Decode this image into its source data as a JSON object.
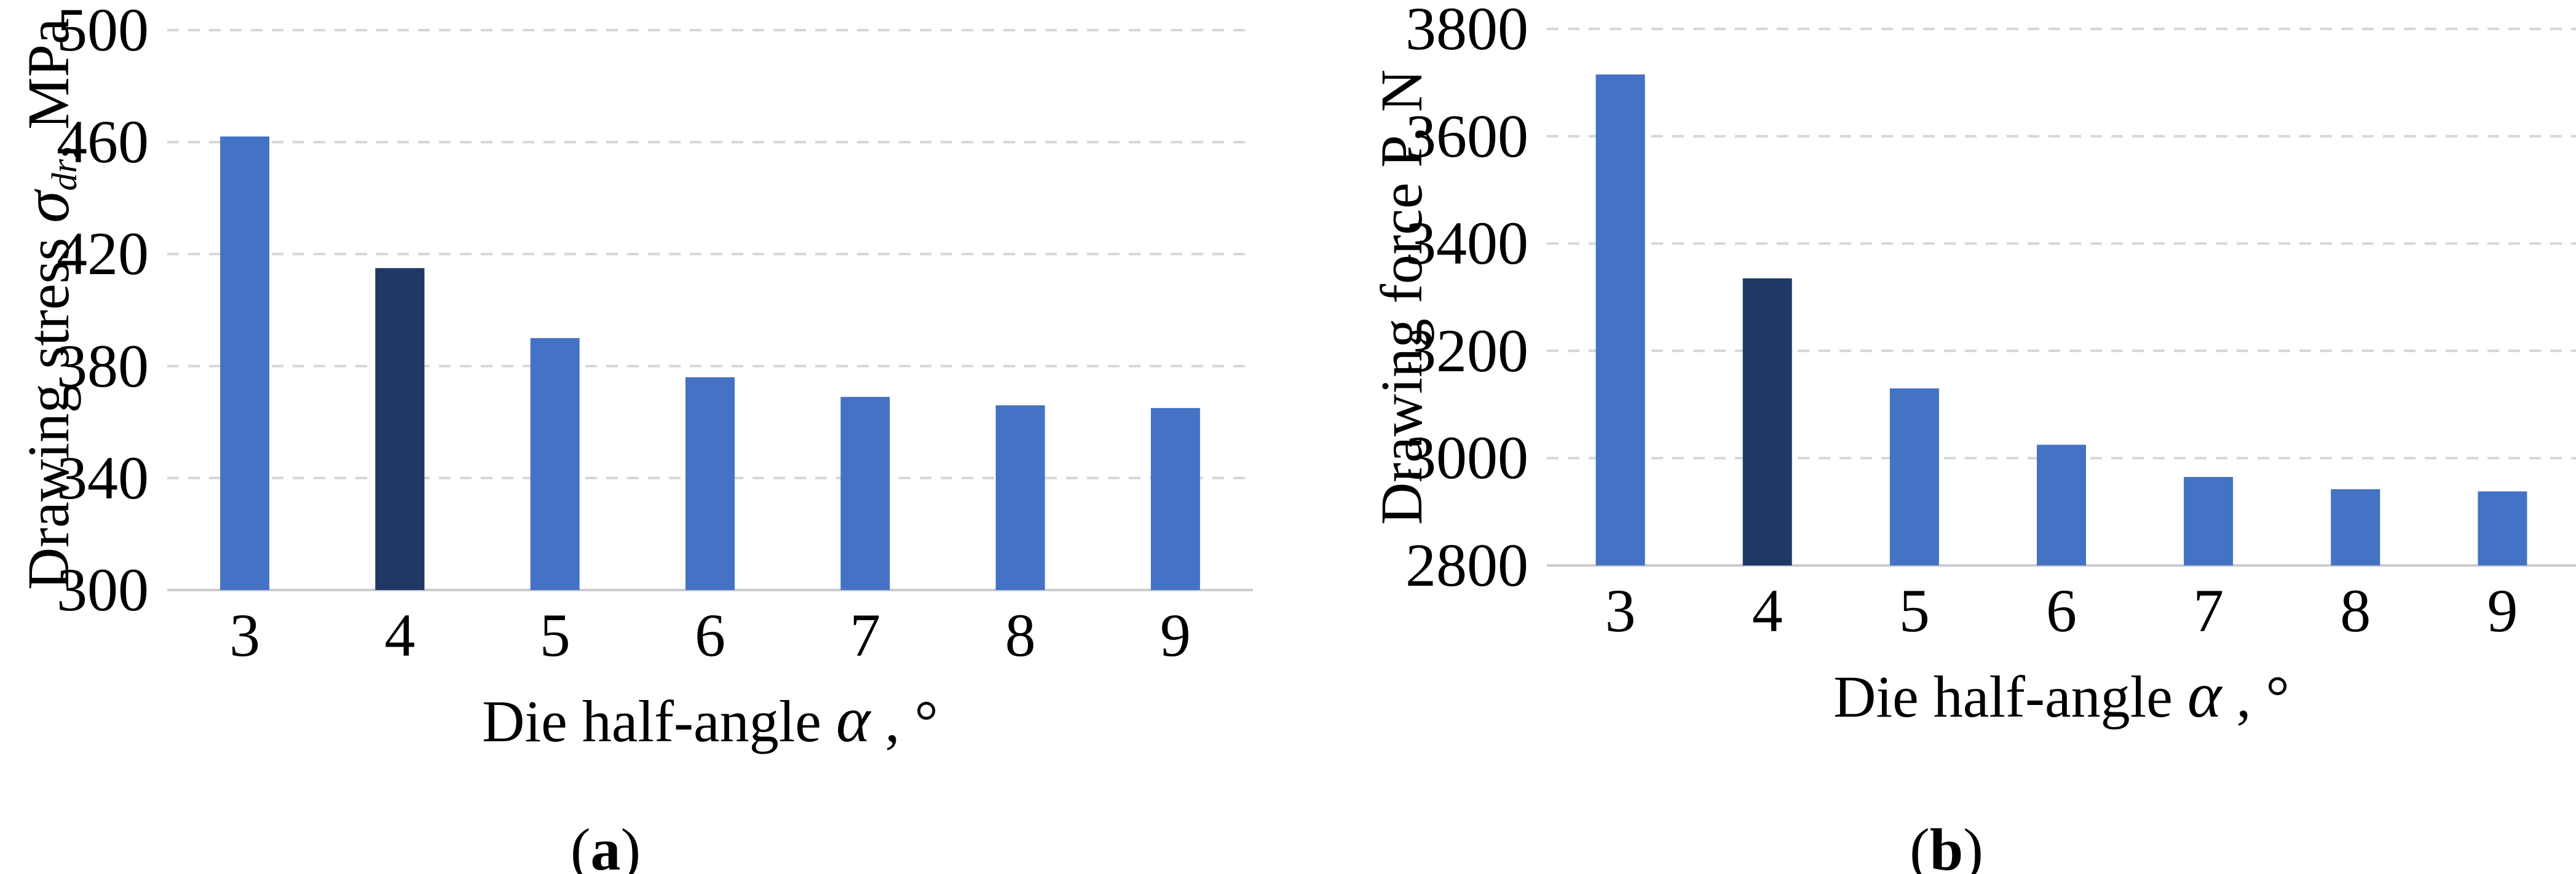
{
  "figure": {
    "background": "#ffffff",
    "captions": [
      {
        "open": "(",
        "letter": "a",
        "close": ")"
      },
      {
        "open": "(",
        "letter": "b",
        "close": ")"
      }
    ]
  },
  "chart_data": [
    {
      "type": "bar",
      "title": "",
      "categories": [
        "3",
        "4",
        "5",
        "6",
        "7",
        "8",
        "9"
      ],
      "values": [
        462,
        415,
        390,
        376,
        369,
        366,
        365
      ],
      "bar_colors": [
        "#4472C4",
        "#1F3864",
        "#4472C4",
        "#4472C4",
        "#4472C4",
        "#4472C4",
        "#4472C4"
      ],
      "highlight_category": "4",
      "ylabel_full": "Drawing stress σdr, MPa",
      "ylabel_prefix": "Drawing stress ",
      "ylabel_symbol": "σ",
      "ylabel_subscript": "dr",
      "ylabel_suffix": ", MPa",
      "xlabel_full": "Die half-angle α , °",
      "xlabel_prefix": "Die half-angle ",
      "xlabel_symbol": "α",
      "xlabel_suffix": " , °",
      "ylim": [
        300,
        500
      ],
      "yticks": [
        300,
        340,
        380,
        420,
        460,
        500
      ],
      "grid": "horizontal-dashed",
      "legend": "none",
      "gridline_color": "#D6D6D6",
      "axis_line_color": "#CBCBCB",
      "text_color": "#000000"
    },
    {
      "type": "bar",
      "title": "",
      "categories": [
        "3",
        "4",
        "5",
        "6",
        "7",
        "8",
        "9"
      ],
      "values": [
        3715,
        3335,
        3130,
        3025,
        2965,
        2942,
        2938
      ],
      "bar_colors": [
        "#4472C4",
        "#1F3864",
        "#4472C4",
        "#4472C4",
        "#4472C4",
        "#4472C4",
        "#4472C4"
      ],
      "highlight_category": "4",
      "ylabel_full": "Drawing force P, N",
      "ylabel_prefix": "Drawing force P, N",
      "ylabel_symbol": "",
      "ylabel_subscript": "",
      "ylabel_suffix": "",
      "xlabel_full": "Die half-angle α , °",
      "xlabel_prefix": "Die half-angle ",
      "xlabel_symbol": "α",
      "xlabel_suffix": " , °",
      "ylim": [
        2800,
        3800
      ],
      "yticks": [
        2800,
        3000,
        3200,
        3400,
        3600,
        3800
      ],
      "grid": "horizontal-dashed",
      "legend": "none",
      "gridline_color": "#D6D6D6",
      "axis_line_color": "#CBCBCB",
      "text_color": "#000000"
    }
  ]
}
